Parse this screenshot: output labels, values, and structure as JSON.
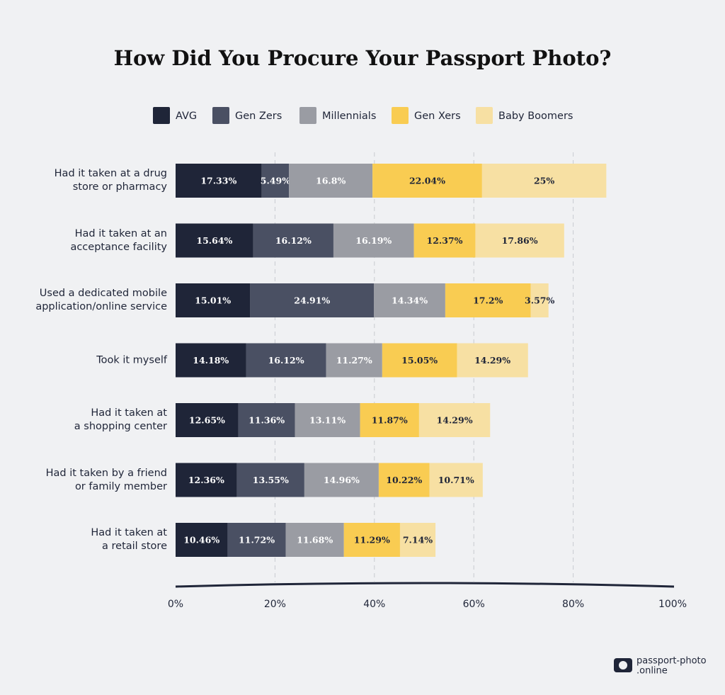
{
  "chart_data": {
    "type": "stacked_bar_horizontal",
    "title": "How Did You Procure Your Passport Photo?",
    "categories": [
      "Had it taken at a drug\nstore or pharmacy",
      "Had it taken at an\nacceptance facility",
      "Used a dedicated mobile\napplication/online service",
      "Took it myself",
      "Had it taken at\na shopping center",
      "Had it taken by a friend\nor family member",
      "Had it taken at\na retail store"
    ],
    "series": [
      {
        "name": "AVG",
        "color": "#1f2538",
        "values": [
          17.33,
          15.64,
          15.01,
          14.18,
          12.65,
          12.36,
          10.46
        ],
        "value_labels": [
          "17.33%",
          "15.64%",
          "15.01%",
          "14.18%",
          "12.65%",
          "12.36%",
          "10.46%"
        ]
      },
      {
        "name": "Gen Zers",
        "color": "#4a5063",
        "values": [
          5.49,
          16.12,
          24.91,
          16.12,
          11.36,
          13.55,
          11.72
        ],
        "value_labels": [
          "5.49%",
          "16.12%",
          "24.91%",
          "16.12%",
          "11.36%",
          "13.55%",
          "11.72%"
        ]
      },
      {
        "name": "Millennials",
        "color": "#9a9ca3",
        "values": [
          16.8,
          16.19,
          14.34,
          11.27,
          13.11,
          14.96,
          11.68
        ],
        "value_labels": [
          "16.8%",
          "16.19%",
          "14.34%",
          "11.27%",
          "13.11%",
          "14.96%",
          "11.68%"
        ]
      },
      {
        "name": "Gen Xers",
        "color": "#f9cc52",
        "values": [
          22.04,
          12.37,
          17.2,
          15.05,
          11.87,
          10.22,
          11.29
        ],
        "value_labels": [
          "22.04%",
          "12.37%",
          "17.2%",
          "15.05%",
          "11.87%",
          "10.22%",
          "11.29%"
        ]
      },
      {
        "name": "Baby Boomers",
        "color": "#f7e0a3",
        "values": [
          25,
          17.86,
          3.57,
          14.29,
          14.29,
          10.71,
          7.14
        ],
        "value_labels": [
          "25%",
          "17.86%",
          "3.57%",
          "14.29%",
          "14.29%",
          "10.71%",
          "7.14%"
        ]
      }
    ],
    "xlim": [
      0,
      100
    ],
    "xticks": [
      {
        "value": 0,
        "label": "0%"
      },
      {
        "value": 20,
        "label": "20%"
      },
      {
        "value": 40,
        "label": "40%"
      },
      {
        "value": 60,
        "label": "60%"
      },
      {
        "value": 80,
        "label": "80%"
      },
      {
        "value": 100,
        "label": "100%"
      }
    ],
    "grid": true,
    "legend": "top"
  },
  "logo": [
    "passport-photo",
    ".online"
  ]
}
